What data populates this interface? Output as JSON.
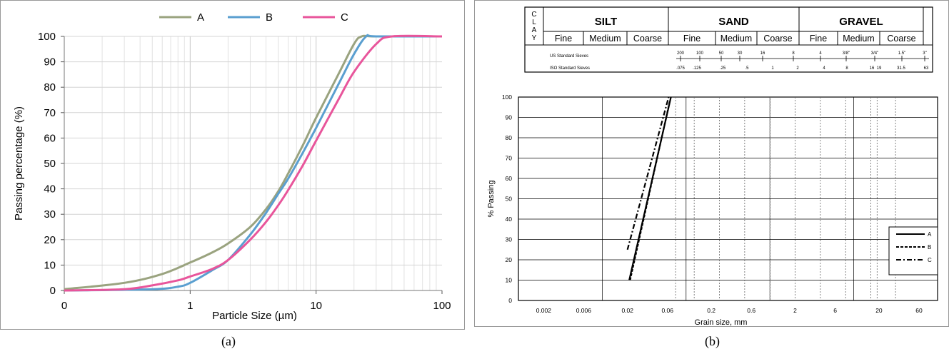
{
  "chart_data": [
    {
      "type": "line",
      "panel_label": "(a)",
      "xlabel": "Particle Size (µm)",
      "ylabel": "Passing percentage (%)",
      "xscale": "log",
      "xlim": [
        0.1,
        100
      ],
      "ylim": [
        0,
        100
      ],
      "xtick_labels": [
        "0",
        "1",
        "10",
        "100"
      ],
      "yticks": [
        0,
        10,
        20,
        30,
        40,
        50,
        60,
        70,
        80,
        90,
        100
      ],
      "grid": true,
      "legend_position": "top",
      "series": [
        {
          "name": "A",
          "color": "#9aa37f",
          "x": [
            0.1,
            0.3,
            0.6,
            1,
            1.5,
            2,
            3,
            4,
            5,
            6,
            8,
            10,
            15,
            20,
            23,
            30,
            100
          ],
          "y": [
            0.5,
            3,
            6.5,
            11,
            15,
            18.5,
            25,
            32,
            39,
            46,
            58,
            68,
            85,
            97,
            100,
            100,
            100
          ]
        },
        {
          "name": "B",
          "color": "#5a9fd0",
          "x": [
            0.1,
            0.5,
            0.8,
            1,
            1.5,
            2,
            3,
            4,
            5,
            6,
            8,
            10,
            15,
            20,
            25,
            30,
            100
          ],
          "y": [
            0,
            0.5,
            1.5,
            3,
            8,
            12,
            22,
            30.5,
            38,
            44,
            55,
            64,
            81,
            93,
            100,
            100,
            100
          ]
        },
        {
          "name": "C",
          "color": "#e8559b",
          "x": [
            0.1,
            0.3,
            0.5,
            0.8,
            1,
            1.5,
            2,
            3,
            4,
            5,
            6,
            8,
            10,
            15,
            20,
            30,
            40,
            100
          ],
          "y": [
            0,
            0.5,
            2,
            4,
            5.5,
            8.5,
            12,
            20,
            27,
            33.5,
            39.5,
            50,
            59,
            75,
            86,
            97,
            100,
            100
          ]
        }
      ]
    },
    {
      "type": "line",
      "panel_label": "(b)",
      "xlabel": "Grain size, mm",
      "ylabel": "% Passing",
      "xscale": "log",
      "xlim": [
        0.001,
        100
      ],
      "ylim": [
        0,
        100
      ],
      "xtick_labels": [
        "0.002",
        "0.006",
        "0.02",
        "0.06",
        "0.2",
        "0.6",
        "2",
        "6",
        "20",
        "60"
      ],
      "yticks": [
        0,
        10,
        20,
        30,
        40,
        50,
        60,
        70,
        80,
        90,
        100
      ],
      "grid": true,
      "legend_position": "bottom-right",
      "soil_classes": {
        "clay": "C\nL\nA\nY",
        "groups": [
          {
            "name": "SILT",
            "subs": [
              "Fine",
              "Medium",
              "Coarse"
            ]
          },
          {
            "name": "SAND",
            "subs": [
              "Fine",
              "Medium",
              "Coarse"
            ]
          },
          {
            "name": "GRAVEL",
            "subs": [
              "Fine",
              "Medium",
              "Coarse"
            ]
          }
        ]
      },
      "us_sieves_label": "US Standard Sieves",
      "us_sieves": [
        "200",
        "100",
        "50",
        "30",
        "16",
        "8",
        "4",
        "3/8\"",
        "3/4\"",
        "1.5\"",
        "3\""
      ],
      "iso_sieves_label": "ISO Standard Sieves",
      "iso_sieves": [
        ".075",
        ".125",
        ".25",
        ".5",
        "1",
        "2",
        "4",
        "8",
        "16",
        "19",
        "31.5",
        "63"
      ],
      "series": [
        {
          "name": "A",
          "dash": "solid",
          "x": [
            0.021,
            0.066
          ],
          "y": [
            10,
            100
          ]
        },
        {
          "name": "B",
          "dash": "dashed",
          "x": [
            0.0215,
            0.064
          ],
          "y": [
            10,
            98
          ]
        },
        {
          "name": "C",
          "dash": "dashdot",
          "x": [
            0.02,
            0.062
          ],
          "y": [
            25,
            100
          ]
        }
      ]
    }
  ],
  "captions": {
    "a": "(a)",
    "b": "(b)"
  }
}
